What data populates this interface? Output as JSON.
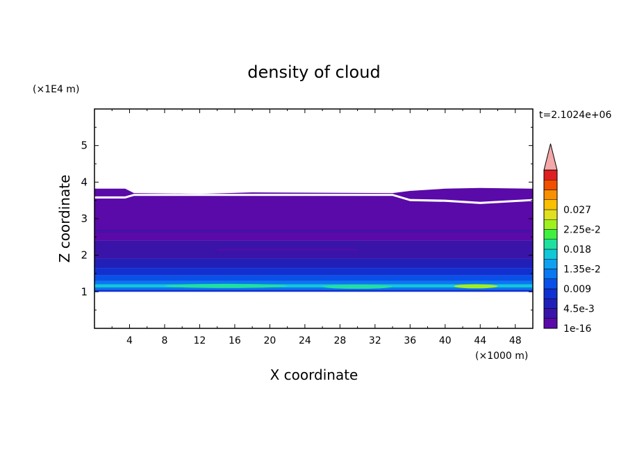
{
  "chart_data": {
    "type": "heatmap",
    "title": "density of cloud",
    "xlabel": "X coordinate",
    "ylabel": "Z coordinate",
    "x_unit": "(×1000 m)",
    "y_unit": "(×1E4 m)",
    "time_label": "t=2.1024e+06",
    "xlim": [
      0,
      50
    ],
    "ylim": [
      0,
      6
    ],
    "x_ticks": [
      4,
      8,
      12,
      16,
      20,
      24,
      28,
      32,
      36,
      40,
      44,
      48
    ],
    "y_ticks": [
      1,
      2,
      3,
      4,
      5
    ],
    "colorbar": {
      "colors": [
        "#5a0aa8",
        "#3a14a8",
        "#2020b8",
        "#1030d0",
        "#0a50e8",
        "#0a78f0",
        "#10a0f0",
        "#10c8d8",
        "#20e0a0",
        "#40f040",
        "#a0f020",
        "#e0e020",
        "#f8c000",
        "#f89000",
        "#f05000",
        "#e02020"
      ],
      "over_color": "#f4a8a8",
      "labels": [
        "1e-16",
        "4.5e-3",
        "0.009",
        "1.35e-2",
        "0.018",
        "2.25e-2",
        "0.027"
      ],
      "label_band_index": [
        0,
        2,
        4,
        6,
        8,
        10,
        12
      ]
    },
    "layers": [
      {
        "z_bottom": 1.0,
        "z_top": 1.06,
        "level": 3
      },
      {
        "z_bottom": 1.06,
        "z_top": 1.12,
        "level": 5
      },
      {
        "z_bottom": 1.12,
        "z_top": 1.2,
        "level": 7
      },
      {
        "z_bottom": 1.2,
        "z_top": 1.3,
        "level": 5
      },
      {
        "z_bottom": 1.3,
        "z_top": 1.45,
        "level": 4
      },
      {
        "z_bottom": 1.45,
        "z_top": 1.65,
        "level": 3
      },
      {
        "z_bottom": 1.65,
        "z_top": 1.9,
        "level": 2
      },
      {
        "z_bottom": 1.9,
        "z_top": 2.4,
        "level": 1
      },
      {
        "z_bottom": 2.4,
        "z_top": 3.6,
        "level": 0
      }
    ],
    "features": [
      {
        "x_start": 41,
        "x_end": 46,
        "z": 1.15,
        "level": 10
      },
      {
        "x_start": 8,
        "x_end": 22,
        "z": 1.16,
        "level": 8
      },
      {
        "x_start": 26,
        "x_end": 34,
        "z": 1.14,
        "level": 8
      }
    ],
    "cloud_top": {
      "x": [
        0,
        3.5,
        4.5,
        12,
        18,
        34,
        36,
        40,
        44,
        50
      ],
      "upper_z": [
        3.82,
        3.82,
        3.7,
        3.68,
        3.72,
        3.7,
        3.76,
        3.82,
        3.84,
        3.82
      ],
      "gap_z": [
        3.55,
        3.55,
        3.62,
        3.62,
        3.62,
        3.62,
        3.48,
        3.46,
        3.4,
        3.48
      ]
    }
  }
}
